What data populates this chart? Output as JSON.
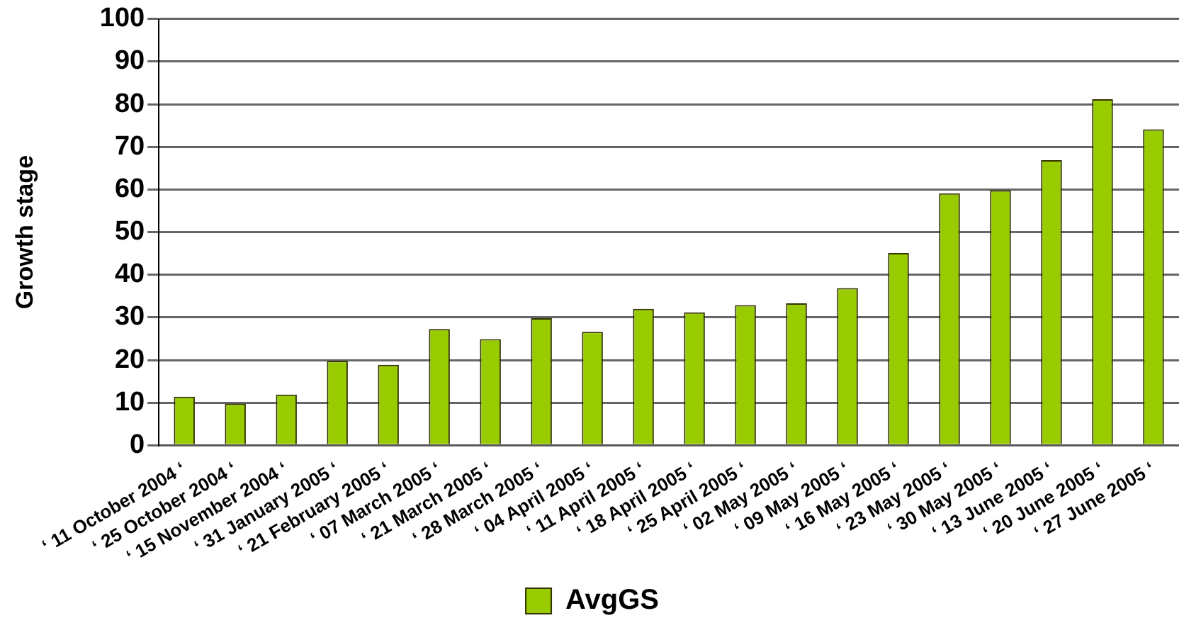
{
  "chart_data": {
    "type": "bar",
    "ylabel": "Growth stage",
    "categories": [
      "‘ 11 October 2004 ‘",
      "‘ 25 October 2004 ‘",
      "‘ 15 November 2004 ‘",
      "‘ 31 January 2005 ‘",
      "‘ 21 February 2005 ‘",
      "‘ 07 March 2005 ‘",
      "‘ 21 March 2005 ‘",
      "‘ 28 March 2005 ‘",
      "‘ 04 April 2005 ‘",
      "‘ 11 April 2005 ‘",
      "‘ 18 April 2005 ‘",
      "‘ 25 April 2005 ‘",
      "‘ 02 May 2005 ‘",
      "‘ 09 May 2005 ‘",
      "‘ 16 May 2005 ‘",
      "‘ 23 May 2005 ‘",
      "‘ 30 May 2005 ‘",
      "‘ 13 June 2005 ‘",
      "‘ 20 June 2005 ‘",
      "‘ 27 June 2005 ‘"
    ],
    "series": [
      {
        "name": "AvgGS",
        "color": "#99cc00",
        "values": [
          11.4,
          9.8,
          11.9,
          19.8,
          18.9,
          27.3,
          24.9,
          29.8,
          26.6,
          32.0,
          31.2,
          32.9,
          33.3,
          36.9,
          45.1,
          59.1,
          59.8,
          66.9,
          81.2,
          74.1
        ]
      }
    ],
    "ylim": [
      0,
      100
    ],
    "yticks": [
      0,
      10,
      20,
      30,
      40,
      50,
      60,
      70,
      80,
      90,
      100
    ],
    "grid": "y",
    "legend": "bottom"
  }
}
